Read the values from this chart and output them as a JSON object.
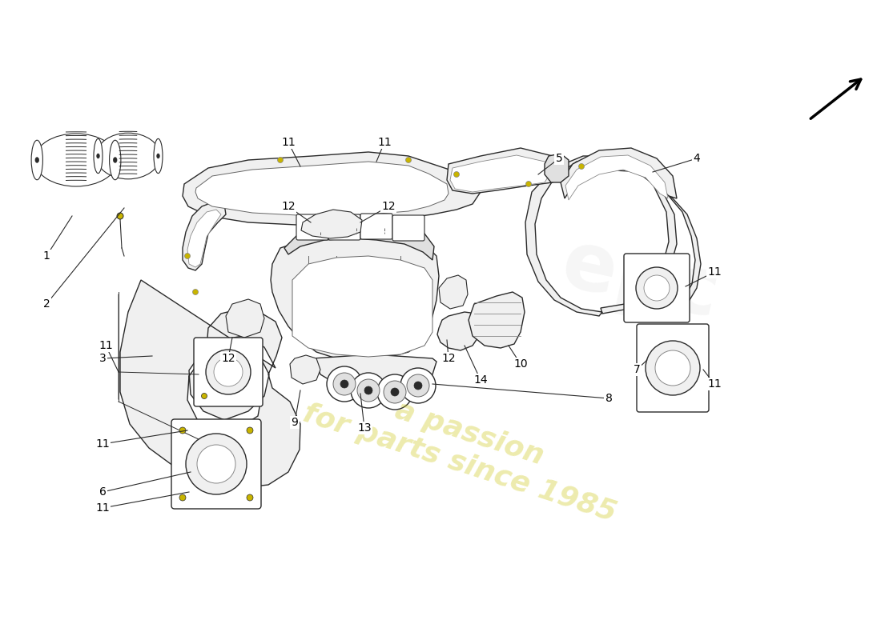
{
  "bg_color": "#ffffff",
  "line_color": "#2a2a2a",
  "fill_color": "#f0f0f0",
  "fill_color2": "#e0e0e0",
  "watermark_text": "a passion\nfor parts since 1985",
  "watermark_color": "#c8c000",
  "figsize": [
    11.0,
    8.0
  ],
  "dpi": 100,
  "label_fontsize": 10,
  "arrow_color": "#000000"
}
